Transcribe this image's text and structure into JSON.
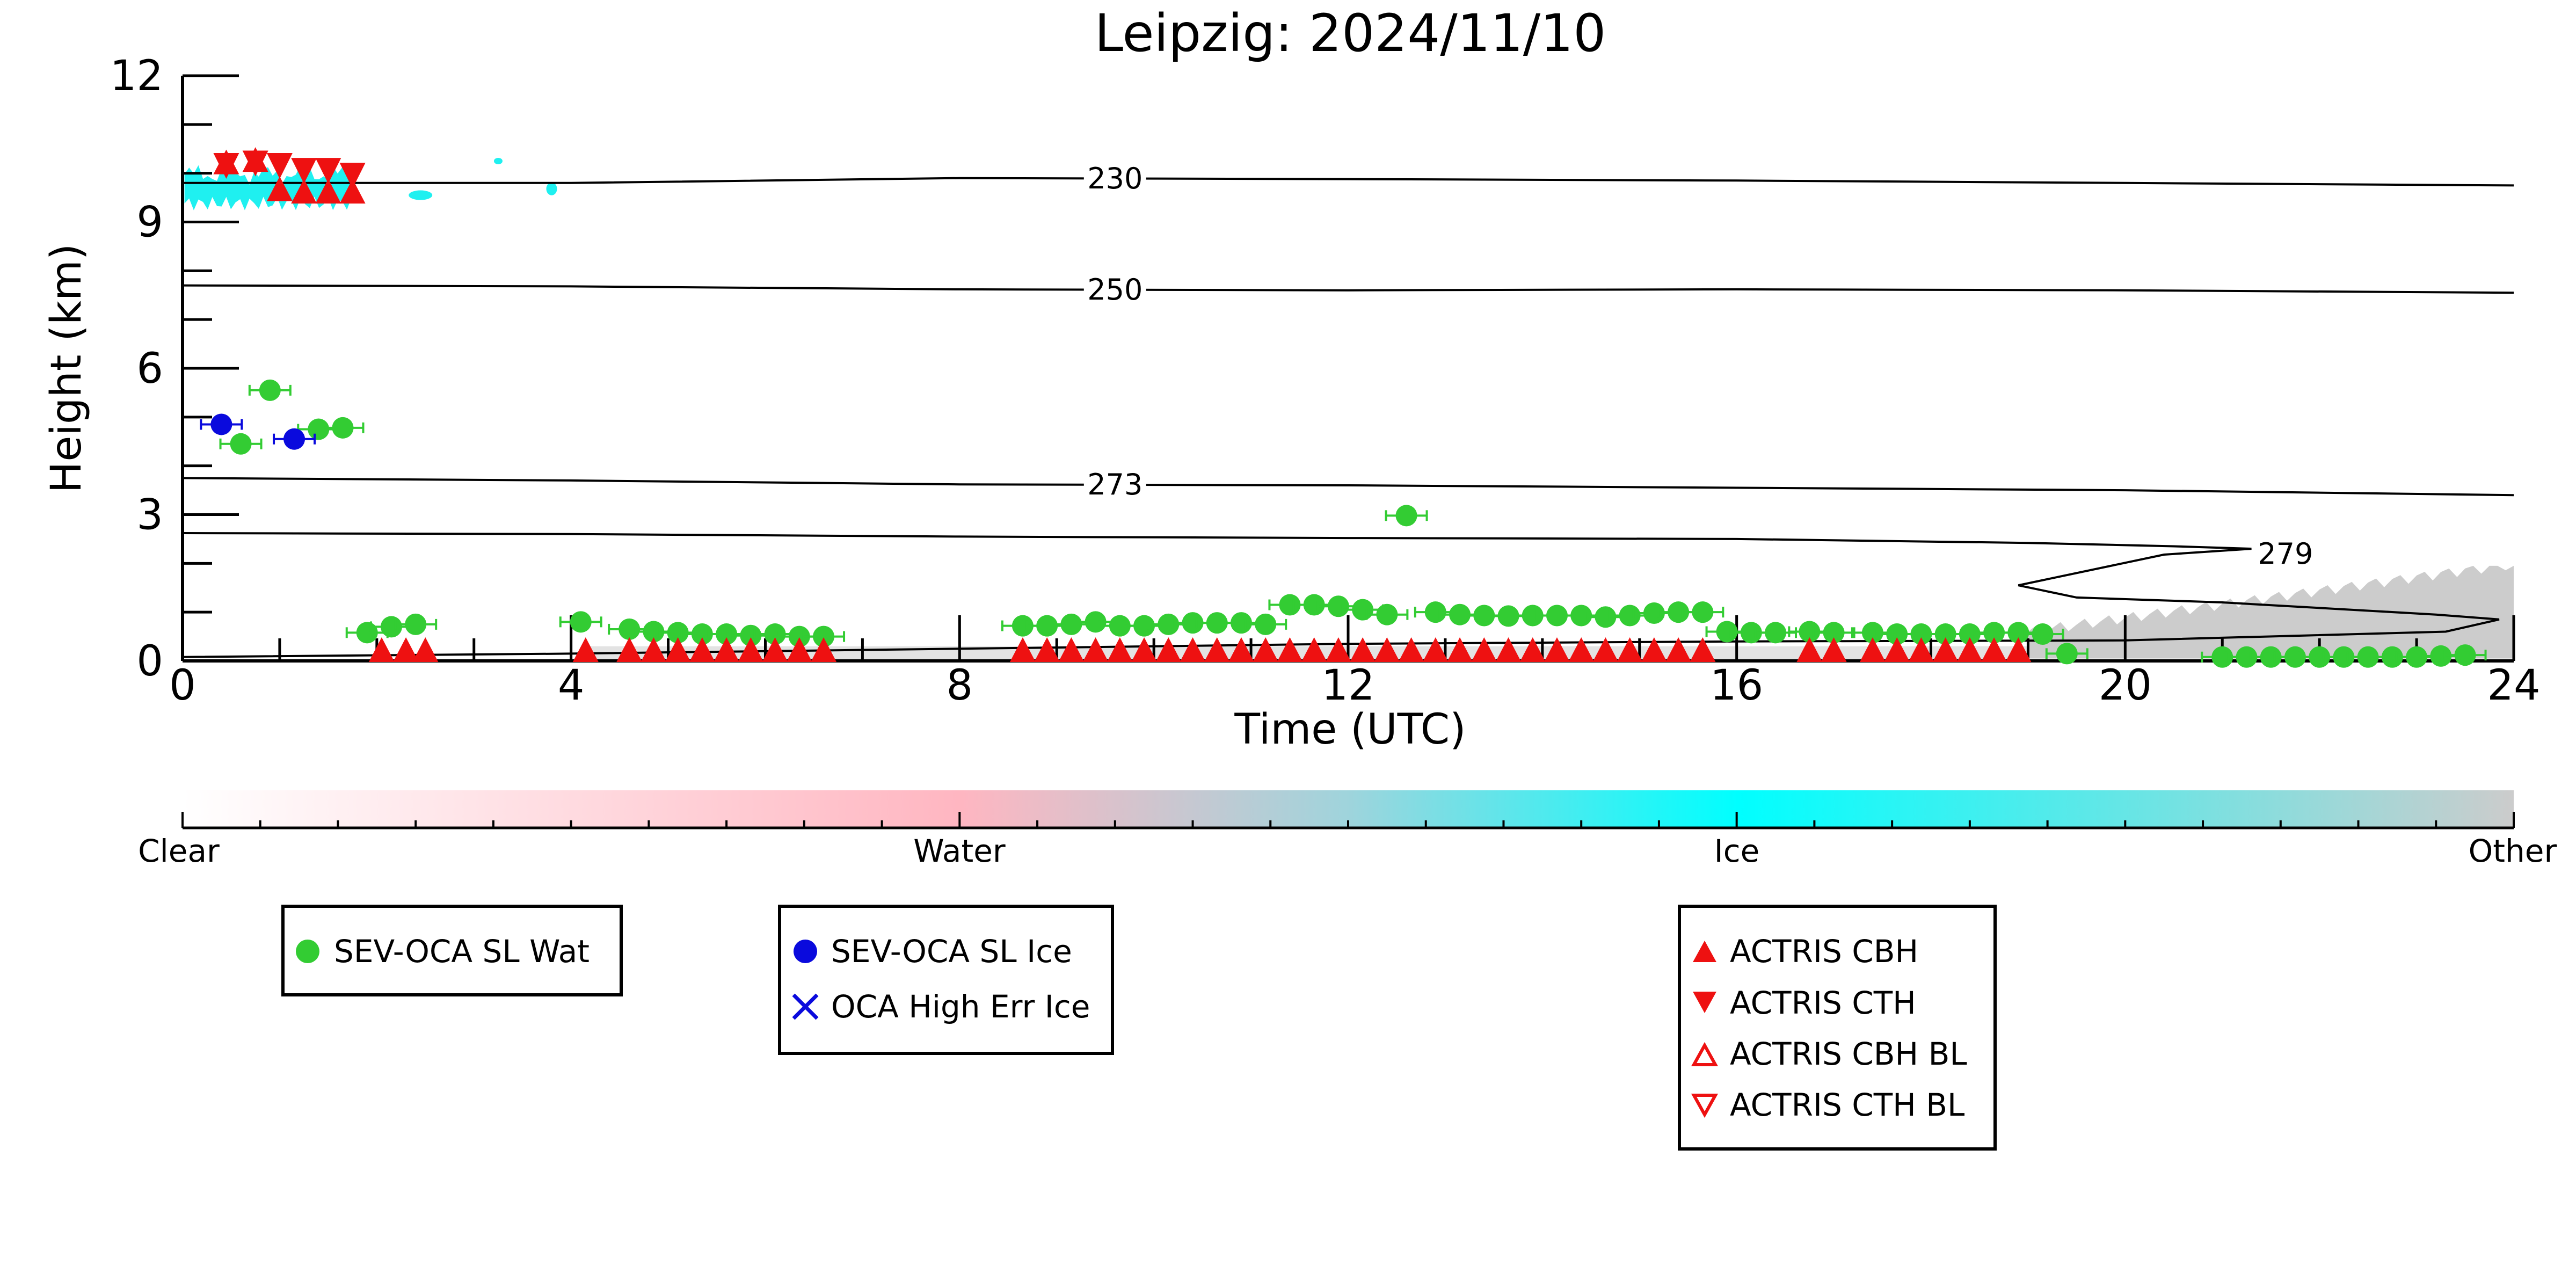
{
  "chart_data": {
    "type": "scatter",
    "title": "Leipzig: 2024/11/10",
    "xlabel": "Time (UTC)",
    "ylabel": "Height (km)",
    "xlim": [
      0,
      24
    ],
    "ylim": [
      0,
      12
    ],
    "x_ticks": [
      0,
      4,
      8,
      12,
      16,
      20,
      24
    ],
    "y_ticks": [
      0,
      3,
      6,
      9,
      12
    ],
    "colors": {
      "water": "#33cc33",
      "ice": "#0a0add",
      "actris": "#ee1111",
      "ice_mask": "#1ff0f0",
      "other_mask": "#cccccc",
      "contour": "#000000"
    },
    "contours": [
      {
        "label": "230",
        "points": [
          [
            0,
            9.8
          ],
          [
            4,
            9.8
          ],
          [
            8,
            9.9
          ],
          [
            12,
            9.88
          ],
          [
            16,
            9.85
          ],
          [
            20,
            9.8
          ],
          [
            24,
            9.75
          ]
        ]
      },
      {
        "label": "250",
        "points": [
          [
            0,
            7.7
          ],
          [
            4,
            7.68
          ],
          [
            8,
            7.62
          ],
          [
            12,
            7.6
          ],
          [
            16,
            7.62
          ],
          [
            20,
            7.6
          ],
          [
            24,
            7.55
          ]
        ]
      },
      {
        "label": "273",
        "points": [
          [
            0,
            3.75
          ],
          [
            4,
            3.7
          ],
          [
            8,
            3.62
          ],
          [
            12,
            3.6
          ],
          [
            16,
            3.55
          ],
          [
            20,
            3.5
          ],
          [
            24,
            3.4
          ]
        ]
      },
      {
        "label": "279",
        "points": [
          [
            0,
            2.62
          ],
          [
            4,
            2.6
          ],
          [
            8,
            2.55
          ],
          [
            12,
            2.52
          ],
          [
            16,
            2.5
          ],
          [
            19,
            2.42
          ],
          [
            20.5,
            2.35
          ],
          [
            21.3,
            2.3
          ],
          [
            20.4,
            2.18
          ],
          [
            18.9,
            1.55
          ],
          [
            19.5,
            1.3
          ],
          [
            21,
            1.2
          ],
          [
            23.2,
            0.95
          ],
          [
            23.85,
            0.85
          ],
          [
            23.3,
            0.6
          ],
          [
            20,
            0.42
          ],
          [
            16,
            0.4
          ],
          [
            12,
            0.35
          ],
          [
            8,
            0.25
          ],
          [
            4,
            0.15
          ],
          [
            0,
            0.08
          ]
        ]
      }
    ],
    "legend_placement": "below",
    "colorbar": {
      "labels": [
        "Clear",
        "Water",
        "Ice",
        "Other"
      ]
    },
    "series": [
      {
        "name": "SEV-OCA SL Wat",
        "marker": "circle",
        "points": [
          [
            0.6,
            4.45
          ],
          [
            0.9,
            5.55
          ],
          [
            1.4,
            4.75
          ],
          [
            1.65,
            4.78
          ],
          [
            1.9,
            0.58
          ],
          [
            2.15,
            0.7
          ],
          [
            2.4,
            0.75
          ],
          [
            4.1,
            0.8
          ],
          [
            4.6,
            0.65
          ],
          [
            4.85,
            0.6
          ],
          [
            5.1,
            0.58
          ],
          [
            5.35,
            0.55
          ],
          [
            5.6,
            0.55
          ],
          [
            5.85,
            0.52
          ],
          [
            6.1,
            0.55
          ],
          [
            6.35,
            0.5
          ],
          [
            6.6,
            0.5
          ],
          [
            8.65,
            0.72
          ],
          [
            8.9,
            0.72
          ],
          [
            9.15,
            0.75
          ],
          [
            9.4,
            0.8
          ],
          [
            9.65,
            0.72
          ],
          [
            9.9,
            0.72
          ],
          [
            10.15,
            0.75
          ],
          [
            10.4,
            0.78
          ],
          [
            10.65,
            0.78
          ],
          [
            10.9,
            0.78
          ],
          [
            11.15,
            0.75
          ],
          [
            11.4,
            1.15
          ],
          [
            11.65,
            1.15
          ],
          [
            11.9,
            1.12
          ],
          [
            12.15,
            1.05
          ],
          [
            12.4,
            0.95
          ],
          [
            12.6,
            2.98
          ],
          [
            12.9,
            1.0
          ],
          [
            13.15,
            0.95
          ],
          [
            13.4,
            0.93
          ],
          [
            13.65,
            0.92
          ],
          [
            13.9,
            0.93
          ],
          [
            14.15,
            0.93
          ],
          [
            14.4,
            0.93
          ],
          [
            14.65,
            0.9
          ],
          [
            14.9,
            0.93
          ],
          [
            15.15,
            0.98
          ],
          [
            15.4,
            1.0
          ],
          [
            15.65,
            1.0
          ],
          [
            15.9,
            0.6
          ],
          [
            16.15,
            0.58
          ],
          [
            16.4,
            0.58
          ],
          [
            16.75,
            0.6
          ],
          [
            17.0,
            0.58
          ],
          [
            17.4,
            0.58
          ],
          [
            17.65,
            0.55
          ],
          [
            17.9,
            0.55
          ],
          [
            18.15,
            0.55
          ],
          [
            18.4,
            0.55
          ],
          [
            18.65,
            0.58
          ],
          [
            18.9,
            0.58
          ],
          [
            19.15,
            0.55
          ],
          [
            19.4,
            0.15
          ],
          [
            21.0,
            0.08
          ],
          [
            21.25,
            0.08
          ],
          [
            21.5,
            0.08
          ],
          [
            21.75,
            0.08
          ],
          [
            22.0,
            0.08
          ],
          [
            22.25,
            0.08
          ],
          [
            22.5,
            0.08
          ],
          [
            22.75,
            0.08
          ],
          [
            23.0,
            0.08
          ],
          [
            23.25,
            0.1
          ],
          [
            23.5,
            0.12
          ]
        ]
      },
      {
        "name": "SEV-OCA SL Ice",
        "marker": "circle",
        "points": [
          [
            0.4,
            4.85
          ],
          [
            1.15,
            4.55
          ]
        ]
      },
      {
        "name": "OCA High Err Ice",
        "marker": "x",
        "points": []
      },
      {
        "name": "ACTRIS CBH",
        "marker": "triangle-up",
        "points": [
          [
            0.45,
            10.0
          ],
          [
            0.75,
            10.05
          ],
          [
            1.0,
            9.45
          ],
          [
            1.25,
            9.4
          ],
          [
            1.5,
            9.4
          ],
          [
            1.75,
            9.4
          ],
          [
            2.05,
            0.0
          ],
          [
            2.3,
            0.0
          ],
          [
            2.5,
            0.0
          ],
          [
            4.15,
            0.0
          ],
          [
            4.6,
            0.0
          ],
          [
            4.85,
            0.0
          ],
          [
            5.1,
            0.0
          ],
          [
            5.35,
            0.0
          ],
          [
            5.6,
            0.0
          ],
          [
            5.85,
            0.0
          ],
          [
            6.1,
            0.0
          ],
          [
            6.35,
            0.0
          ],
          [
            6.6,
            0.0
          ],
          [
            8.65,
            0.0
          ],
          [
            8.9,
            0.0
          ],
          [
            9.15,
            0.0
          ],
          [
            9.4,
            0.0
          ],
          [
            9.65,
            0.0
          ],
          [
            9.9,
            0.0
          ],
          [
            10.15,
            0.0
          ],
          [
            10.4,
            0.0
          ],
          [
            10.65,
            0.0
          ],
          [
            10.9,
            0.0
          ],
          [
            11.15,
            0.0
          ],
          [
            11.4,
            0.0
          ],
          [
            11.65,
            0.0
          ],
          [
            11.9,
            0.0
          ],
          [
            12.15,
            0.0
          ],
          [
            12.4,
            0.0
          ],
          [
            12.65,
            0.0
          ],
          [
            12.9,
            0.0
          ],
          [
            13.15,
            0.0
          ],
          [
            13.4,
            0.0
          ],
          [
            13.65,
            0.0
          ],
          [
            13.9,
            0.0
          ],
          [
            14.15,
            0.0
          ],
          [
            14.4,
            0.0
          ],
          [
            14.65,
            0.0
          ],
          [
            14.9,
            0.0
          ],
          [
            15.15,
            0.0
          ],
          [
            15.4,
            0.0
          ],
          [
            15.65,
            0.0
          ],
          [
            16.75,
            0.0
          ],
          [
            17.0,
            0.0
          ],
          [
            17.4,
            0.0
          ],
          [
            17.65,
            0.0
          ],
          [
            17.9,
            0.0
          ],
          [
            18.15,
            0.0
          ],
          [
            18.4,
            0.0
          ],
          [
            18.65,
            0.0
          ],
          [
            18.9,
            0.0
          ]
        ]
      },
      {
        "name": "ACTRIS CTH",
        "marker": "triangle-down",
        "points": [
          [
            0.45,
            10.15
          ],
          [
            0.75,
            10.2
          ],
          [
            1.0,
            10.15
          ],
          [
            1.25,
            10.05
          ],
          [
            1.5,
            10.05
          ],
          [
            1.75,
            9.95
          ]
        ]
      },
      {
        "name": "ACTRIS CBH BL",
        "marker": "triangle-up-open",
        "points": []
      },
      {
        "name": "ACTRIS CTH BL",
        "marker": "triangle-down-open",
        "points": []
      }
    ]
  },
  "legend_groups": [
    {
      "entries": [
        "SEV-OCA SL Wat"
      ]
    },
    {
      "entries": [
        "SEV-OCA SL Ice",
        "OCA High Err Ice"
      ]
    },
    {
      "entries": [
        "ACTRIS CBH",
        "ACTRIS CTH",
        "ACTRIS CBH BL",
        "ACTRIS CTH BL"
      ]
    }
  ]
}
